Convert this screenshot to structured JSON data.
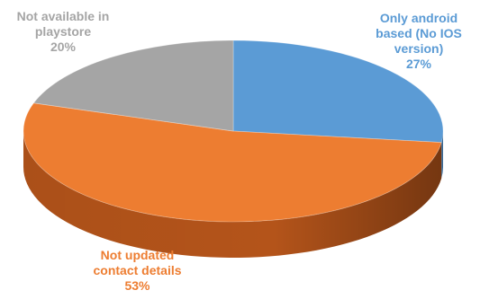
{
  "chart_data": {
    "type": "pie",
    "style": "3d",
    "slices": [
      {
        "label_lines": [
          "Only android",
          "based (No IOS",
          "version)"
        ],
        "percent_text": "27%",
        "value": 27,
        "color": "#5B9BD5",
        "side_color": "#3F76A8"
      },
      {
        "label_lines": [
          "Not updated",
          "contact details"
        ],
        "percent_text": "53%",
        "value": 53,
        "color": "#ED7D31",
        "side_color": "#B4541A"
      },
      {
        "label_lines": [
          "Not available in",
          "playstore"
        ],
        "percent_text": "20%",
        "value": 20,
        "color": "#A5A5A5",
        "side_color": "#7A7A7A"
      }
    ]
  }
}
